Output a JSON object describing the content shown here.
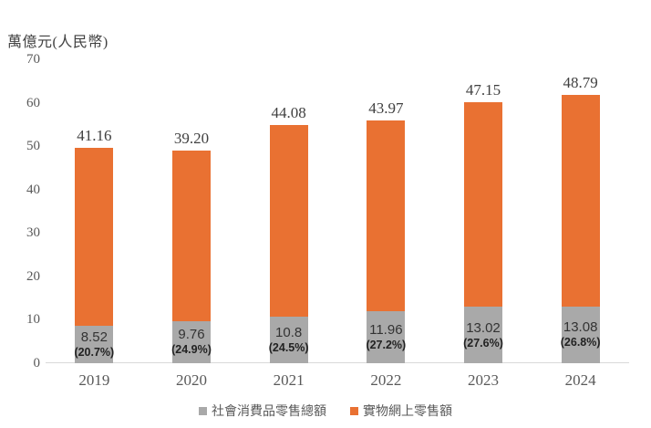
{
  "chart_data": {
    "type": "bar",
    "subtype": "stacked-column",
    "ylabel": "萬億元(人民幣)",
    "categories": [
      "2019",
      "2020",
      "2021",
      "2022",
      "2023",
      "2024"
    ],
    "series": [
      {
        "name": "社會消費品零售總額",
        "color": "#A9A9A9",
        "stack_order": "bottom",
        "values": [
          8.52,
          9.76,
          10.8,
          11.96,
          13.02,
          13.08
        ],
        "value_labels": [
          "8.52",
          "9.76",
          "10.8",
          "11.96",
          "13.02",
          "13.08"
        ],
        "pct_labels": [
          "(20.7%)",
          "(24.9%)",
          "(24.5%)",
          "(27.2%)",
          "(27.6%)",
          "(26.8%)"
        ]
      },
      {
        "name": "實物網上零售額",
        "color": "#E97132",
        "stack_order": "top",
        "values": [
          41.16,
          39.2,
          44.08,
          43.97,
          47.15,
          48.79
        ],
        "value_labels": [
          "41.16",
          "39.20",
          "44.08",
          "43.97",
          "47.15",
          "48.79"
        ]
      }
    ],
    "ylim": [
      0,
      70
    ],
    "yticks": [
      0,
      10,
      20,
      30,
      40,
      50,
      60,
      70
    ],
    "grid": false,
    "legend_position": "bottom",
    "axis_line_color": "#d9d9d9",
    "background": "#ffffff"
  }
}
